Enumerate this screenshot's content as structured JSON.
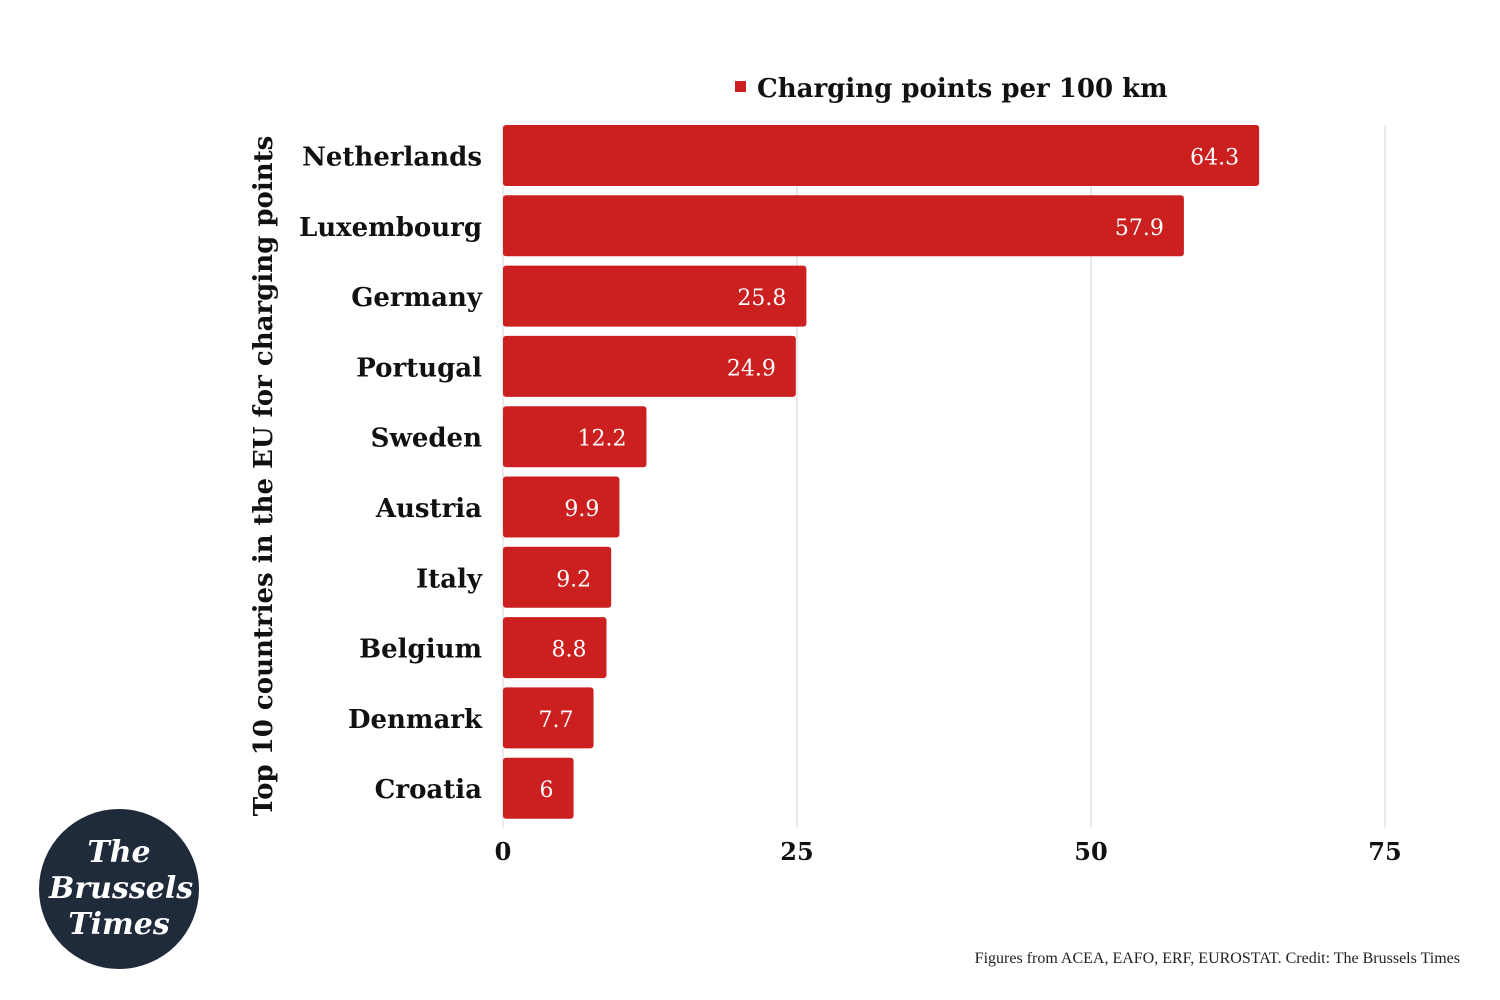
{
  "chart_data": {
    "type": "bar",
    "orientation": "horizontal",
    "ylabel": "Top 10 countries in the EU for charging points",
    "xlabel": "",
    "categories": [
      "Netherlands",
      "Luxembourg",
      "Germany",
      "Portugal",
      "Sweden",
      "Austria",
      "Italy",
      "Belgium",
      "Denmark",
      "Croatia"
    ],
    "series": [
      {
        "name": "Charging points per 100 km",
        "values": [
          64.3,
          57.9,
          25.8,
          24.9,
          12.2,
          9.9,
          9.2,
          8.8,
          7.7,
          6
        ],
        "labels": [
          "64.3",
          "57.9",
          "25.8",
          "24.9",
          "12.2",
          "9.9",
          "9.2",
          "8.8",
          "7.7",
          "6"
        ],
        "color": "#cc1f1f"
      }
    ],
    "xlim": [
      0,
      75
    ],
    "xticks": [
      0,
      25,
      50,
      75
    ],
    "xtick_labels": [
      "0",
      "25",
      "50",
      "75"
    ],
    "grid": true,
    "legend_position": "top"
  },
  "footer": {
    "source": "Figures from ACEA, EAFO, ERF, EUROSTAT. Credit: The Brussels Times"
  },
  "logo": {
    "lines": [
      "The",
      "Brussels",
      "Times"
    ],
    "background": "#1f2a3a"
  }
}
